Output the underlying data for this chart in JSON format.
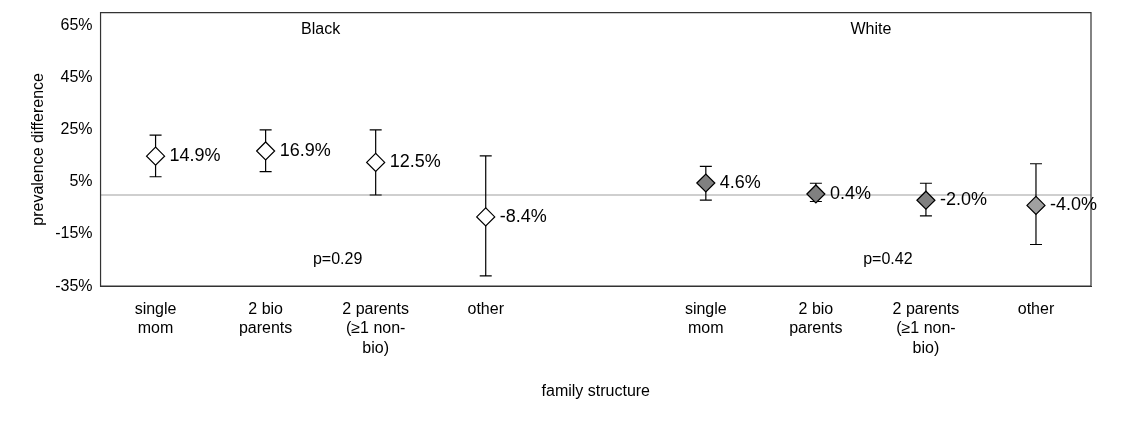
{
  "chart_data": {
    "type": "scatter",
    "xlabel": "family structure",
    "ylabel": "prevalence difference",
    "categories": [
      "single mom",
      "2 bio parents",
      "2 parents (≥1 non-bio)",
      "other",
      null,
      "single mom",
      "2 bio parents",
      "2 parents (≥1 non-bio)",
      "other"
    ],
    "series": [
      {
        "color": "#ffffff",
        "values": [
          14.9,
          16.9,
          12.5,
          -8.4,
          null,
          null,
          null,
          null,
          null
        ],
        "errors": [
          [
            7,
            23
          ],
          [
            9,
            25
          ],
          [
            0,
            25
          ],
          [
            -31,
            15
          ],
          null,
          null,
          null,
          null,
          null
        ],
        "value_labels": [
          "14.9%",
          "16.9%",
          "12.5%",
          "-8.4%",
          null,
          null,
          null,
          null,
          null
        ]
      },
      {
        "color": "#808080",
        "colors": [
          null,
          null,
          null,
          null,
          null,
          "#808080",
          "#808080",
          "#808080",
          "#a0a0a0"
        ],
        "values": [
          null,
          null,
          null,
          null,
          null,
          4.6,
          0.4,
          -2.0,
          -4.0
        ],
        "errors": [
          null,
          null,
          null,
          null,
          null,
          [
            -2,
            11
          ],
          [
            -2.5,
            4.5
          ],
          [
            -8,
            4.5
          ],
          [
            -19,
            12
          ]
        ],
        "value_labels": [
          null,
          null,
          null,
          null,
          null,
          "4.6%",
          "0.4%",
          "-2.0%",
          "-4.0%"
        ]
      }
    ],
    "ylim": [
      -35,
      70
    ],
    "yticks": [
      {
        "value": -35,
        "label": "-35%"
      },
      {
        "value": -15,
        "label": "-15%"
      },
      {
        "value": 5,
        "label": "5%"
      },
      {
        "value": 25,
        "label": "25%"
      },
      {
        "value": 45,
        "label": "45%"
      },
      {
        "value": 65,
        "label": "65%"
      }
    ],
    "ref_lines": [
      {
        "axis": "y",
        "value": 0,
        "color": "#a0a0a0"
      }
    ],
    "annotations": [
      "Black",
      "White",
      "p=0.29",
      "p=0.42"
    ],
    "marker": "diamond",
    "legend": false,
    "grid": false
  }
}
